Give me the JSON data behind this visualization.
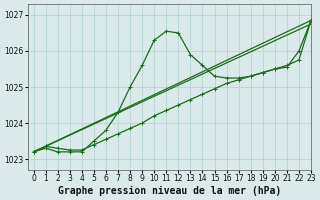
{
  "xlabel": "Graphe pression niveau de la mer (hPa)",
  "xlim": [
    -0.5,
    23
  ],
  "ylim": [
    1022.7,
    1027.3
  ],
  "yticks": [
    1023,
    1024,
    1025,
    1026,
    1027
  ],
  "xticks": [
    0,
    1,
    2,
    3,
    4,
    5,
    6,
    7,
    8,
    9,
    10,
    11,
    12,
    13,
    14,
    15,
    16,
    17,
    18,
    19,
    20,
    21,
    22,
    23
  ],
  "bg_color": "#daeaea",
  "grid_color": "#b0d0d0",
  "line_color": "#1a6b1a",
  "series": [
    {
      "x": [
        0,
        1,
        2,
        3,
        4,
        5,
        6,
        7,
        8,
        9,
        10,
        11,
        12,
        13,
        14,
        15,
        16,
        17,
        18,
        19,
        20,
        21,
        22,
        23
      ],
      "y": [
        1023.2,
        1023.3,
        1023.2,
        1023.2,
        1023.2,
        1023.5,
        1023.8,
        1024.3,
        1025.0,
        1025.6,
        1026.3,
        1026.55,
        1026.5,
        1025.9,
        1025.6,
        1025.3,
        1025.25,
        1025.25,
        1025.3,
        1025.4,
        1025.5,
        1025.55,
        1026.0,
        1026.85
      ],
      "marker": "+"
    },
    {
      "x": [
        0,
        23
      ],
      "y": [
        1023.2,
        1026.85
      ],
      "marker": null
    },
    {
      "x": [
        0,
        23
      ],
      "y": [
        1023.2,
        1026.75
      ],
      "marker": null
    },
    {
      "x": [
        0,
        1,
        2,
        3,
        4,
        5,
        6,
        7,
        8,
        9,
        10,
        11,
        12,
        13,
        14,
        15,
        16,
        17,
        18,
        19,
        20,
        21,
        22,
        23
      ],
      "y": [
        1023.2,
        1023.35,
        1023.3,
        1023.25,
        1023.25,
        1023.4,
        1023.55,
        1023.7,
        1023.85,
        1024.0,
        1024.2,
        1024.35,
        1024.5,
        1024.65,
        1024.8,
        1024.95,
        1025.1,
        1025.2,
        1025.3,
        1025.4,
        1025.5,
        1025.6,
        1025.75,
        1026.85
      ],
      "marker": "+"
    }
  ],
  "title_fontsize": 7,
  "tick_fontsize": 5.5,
  "linewidth": 0.9,
  "markersize": 2.5
}
